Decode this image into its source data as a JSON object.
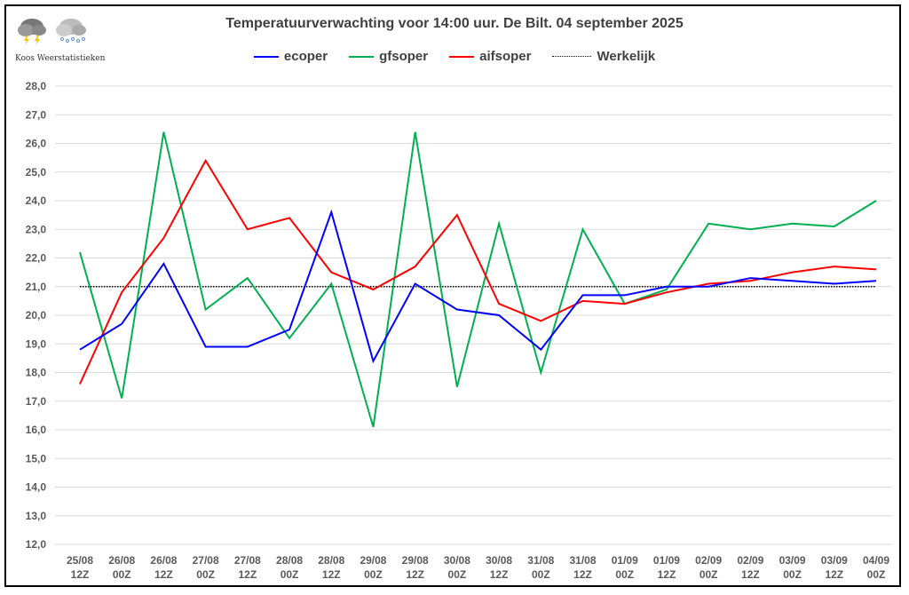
{
  "logo": {
    "text": "Koos Weerstatistieken",
    "icons": [
      "thunderstorm-cloud-icon",
      "snow-cloud-icon"
    ]
  },
  "chart_data": {
    "type": "line",
    "title": "Temperatuurverwachting voor 14:00 uur. De Bilt. 04 september 2025",
    "xlabel": "",
    "ylabel": "",
    "ylim": [
      12,
      28
    ],
    "yticks": [
      "12,0",
      "13,0",
      "14,0",
      "15,0",
      "16,0",
      "17,0",
      "18,0",
      "19,0",
      "20,0",
      "21,0",
      "22,0",
      "23,0",
      "24,0",
      "25,0",
      "26,0",
      "27,0",
      "28,0"
    ],
    "grid": true,
    "legend": "top",
    "categories": [
      [
        "25/08",
        "12Z"
      ],
      [
        "26/08",
        "00Z"
      ],
      [
        "26/08",
        "12Z"
      ],
      [
        "27/08",
        "00Z"
      ],
      [
        "27/08",
        "12Z"
      ],
      [
        "28/08",
        "00Z"
      ],
      [
        "28/08",
        "12Z"
      ],
      [
        "29/08",
        "00Z"
      ],
      [
        "29/08",
        "12Z"
      ],
      [
        "30/08",
        "00Z"
      ],
      [
        "30/08",
        "12Z"
      ],
      [
        "31/08",
        "00Z"
      ],
      [
        "31/08",
        "12Z"
      ],
      [
        "01/09",
        "00Z"
      ],
      [
        "01/09",
        "12Z"
      ],
      [
        "02/09",
        "00Z"
      ],
      [
        "02/09",
        "12Z"
      ],
      [
        "03/09",
        "00Z"
      ],
      [
        "03/09",
        "12Z"
      ],
      [
        "04/09",
        "00Z"
      ]
    ],
    "series": [
      {
        "name": "ecoper",
        "color": "#0000ff",
        "style": "solid",
        "values": [
          18.8,
          19.7,
          21.8,
          18.9,
          18.9,
          19.5,
          23.6,
          18.4,
          21.1,
          20.2,
          20.0,
          18.8,
          20.7,
          20.7,
          21.0,
          21.0,
          21.3,
          21.2,
          21.1,
          21.2
        ]
      },
      {
        "name": "gfsoper",
        "color": "#00b050",
        "style": "solid",
        "values": [
          22.2,
          17.1,
          26.4,
          20.2,
          21.3,
          19.2,
          21.1,
          16.1,
          26.4,
          17.5,
          23.2,
          18.0,
          23.0,
          20.4,
          20.9,
          23.2,
          23.0,
          23.2,
          23.1,
          24.0
        ]
      },
      {
        "name": "aifsoper",
        "color": "#ff0000",
        "style": "solid",
        "values": [
          17.6,
          20.8,
          22.7,
          25.4,
          23.0,
          23.4,
          21.5,
          20.9,
          21.7,
          23.5,
          20.4,
          19.8,
          20.5,
          20.4,
          20.8,
          21.1,
          21.2,
          21.5,
          21.7,
          21.6
        ]
      },
      {
        "name": "Werkelijk",
        "color": "#000000",
        "style": "dotted",
        "values": [
          21.0,
          21.0,
          21.0,
          21.0,
          21.0,
          21.0,
          21.0,
          21.0,
          21.0,
          21.0,
          21.0,
          21.0,
          21.0,
          21.0,
          21.0,
          21.0,
          21.0,
          21.0,
          21.0,
          21.0
        ]
      }
    ]
  }
}
